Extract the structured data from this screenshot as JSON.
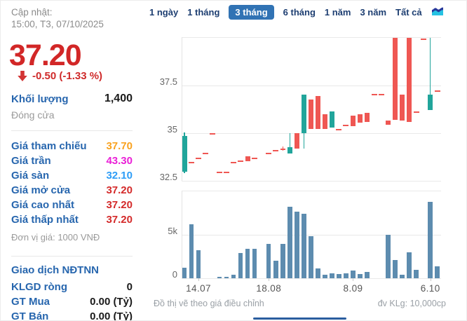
{
  "sidebar": {
    "updated_label": "Cập nhật:",
    "updated_time": "15:00, T3, 07/10/2025",
    "price": "37.20",
    "change": "-0.50 (-1.33 %)",
    "volume_label": "Khối lượng",
    "volume_value": "1,400",
    "close_label": "Đóng cửa",
    "price_rows": [
      {
        "label": "Giá tham chiếu",
        "value": "37.70",
        "color": "#f9a21f"
      },
      {
        "label": "Giá trần",
        "value": "43.30",
        "color": "#ea1fd7"
      },
      {
        "label": "Giá sàn",
        "value": "32.10",
        "color": "#2e9df7"
      },
      {
        "label": "Giá mở cửa",
        "value": "37.20",
        "color": "#d42a2a"
      },
      {
        "label": "Giá cao nhất",
        "value": "37.20",
        "color": "#d42a2a"
      },
      {
        "label": "Giá thấp nhất",
        "value": "37.20",
        "color": "#d42a2a"
      }
    ],
    "unit_note": "Đơn vị giá: 1000 VNĐ",
    "foreign_header": "Giao dịch NĐTNN",
    "foreign_rows": [
      {
        "label": "KLGD ròng",
        "value": "0"
      },
      {
        "label": "GT Mua",
        "value": "0.00 (Tỷ)"
      },
      {
        "label": "GT Bán",
        "value": "0.00 (Tỷ)"
      }
    ]
  },
  "tabs": {
    "items": [
      "1 ngày",
      "1 tháng",
      "3 tháng",
      "6 tháng",
      "1 năm",
      "3 năm",
      "Tất cả"
    ],
    "active": "3 tháng"
  },
  "footer": {
    "left_note": "Đồ thị vẽ theo giá điều chỉnh",
    "right_note": "đv KLg: 10,000cp"
  },
  "chart_data": {
    "type": "candlestick+volume",
    "title": "",
    "price_axis": {
      "range": [
        32.5,
        40
      ],
      "ticks": [
        {
          "v": 37.5,
          "label": "37.5"
        },
        {
          "v": 35,
          "label": "35"
        },
        {
          "v": 32.5,
          "label": "32.5"
        }
      ],
      "grid": true
    },
    "volume_axis": {
      "range_k": [
        0,
        9.8
      ],
      "unit": "k",
      "ticks": [
        {
          "v": 5,
          "label": "5k"
        },
        {
          "v": 0,
          "label": "0"
        }
      ]
    },
    "x_ticks": [
      {
        "i": 2,
        "label": "14.07"
      },
      {
        "i": 12,
        "label": "18.08"
      },
      {
        "i": 24,
        "label": "8.09"
      },
      {
        "i": 35,
        "label": "6.10"
      }
    ],
    "colors": {
      "up": "#21a59b",
      "down": "#ef5753",
      "volume": "#5d8caf"
    },
    "candles": [
      {
        "o": 33.0,
        "h": 35.05,
        "l": 32.9,
        "c": 34.87,
        "v": 1.2,
        "d": "u"
      },
      {
        "o": 33.45,
        "h": 33.45,
        "l": 33.45,
        "c": 33.45,
        "v": 6.2,
        "d": "d"
      },
      {
        "o": 33.7,
        "h": 33.7,
        "l": 33.7,
        "c": 33.7,
        "v": 3.2,
        "d": "d"
      },
      {
        "o": 33.95,
        "h": 33.95,
        "l": 33.95,
        "c": 33.95,
        "v": 0,
        "d": "d"
      },
      {
        "o": 34.95,
        "h": 34.95,
        "l": 34.95,
        "c": 34.95,
        "v": 0,
        "d": "d"
      },
      {
        "o": 32.95,
        "h": 32.95,
        "l": 32.95,
        "c": 32.95,
        "v": 0.15,
        "d": "d"
      },
      {
        "o": 32.95,
        "h": 32.95,
        "l": 32.95,
        "c": 32.95,
        "v": 0.15,
        "d": "d"
      },
      {
        "o": 33.45,
        "h": 33.45,
        "l": 33.45,
        "c": 33.45,
        "v": 0.4,
        "d": "d"
      },
      {
        "o": 33.55,
        "h": 33.55,
        "l": 33.55,
        "c": 33.55,
        "v": 2.9,
        "d": "d"
      },
      {
        "o": 33.8,
        "h": 33.8,
        "l": 33.55,
        "c": 33.55,
        "v": 3.4,
        "d": "d"
      },
      {
        "o": 33.7,
        "h": 33.7,
        "l": 33.7,
        "c": 33.7,
        "v": 3.4,
        "d": "d"
      },
      null,
      {
        "o": 33.95,
        "h": 33.95,
        "l": 33.95,
        "c": 33.95,
        "v": 3.9,
        "d": "d"
      },
      {
        "o": 34.1,
        "h": 34.1,
        "l": 34.1,
        "c": 34.1,
        "v": 2.0,
        "d": "d"
      },
      {
        "o": 34.2,
        "h": 34.3,
        "l": 34.1,
        "c": 34.2,
        "v": 3.9,
        "d": "d"
      },
      {
        "o": 33.95,
        "h": 35.0,
        "l": 33.95,
        "c": 34.25,
        "v": 8.2,
        "d": "u"
      },
      {
        "o": 35.0,
        "h": 35.0,
        "l": 34.2,
        "c": 34.2,
        "v": 7.6,
        "d": "d"
      },
      {
        "o": 35.0,
        "h": 37.0,
        "l": 34.2,
        "c": 37.0,
        "v": 7.4,
        "d": "u"
      },
      {
        "o": 36.75,
        "h": 36.75,
        "l": 35.2,
        "c": 35.2,
        "v": 4.8,
        "d": "d"
      },
      {
        "o": 36.95,
        "h": 36.95,
        "l": 35.2,
        "c": 35.2,
        "v": 1.1,
        "d": "d"
      },
      {
        "o": 36.0,
        "h": 36.0,
        "l": 35.2,
        "c": 35.2,
        "v": 0.4,
        "d": "d"
      },
      {
        "o": 35.3,
        "h": 36.15,
        "l": 35.3,
        "c": 36.15,
        "v": 0.6,
        "d": "u"
      },
      {
        "o": 35.2,
        "h": 35.2,
        "l": 35.2,
        "c": 35.2,
        "v": 0.5,
        "d": "d"
      },
      {
        "o": 35.4,
        "h": 35.4,
        "l": 35.4,
        "c": 35.4,
        "v": 0.6,
        "d": "d"
      },
      {
        "o": 35.9,
        "h": 35.9,
        "l": 35.35,
        "c": 35.35,
        "v": 0.9,
        "d": "d"
      },
      {
        "o": 36.0,
        "h": 36.0,
        "l": 35.55,
        "c": 35.55,
        "v": 0.5,
        "d": "d"
      },
      {
        "o": 36.05,
        "h": 36.05,
        "l": 35.6,
        "c": 35.6,
        "v": 0.7,
        "d": "d"
      },
      {
        "o": 37.0,
        "h": 37.0,
        "l": 37.0,
        "c": 37.0,
        "v": 0,
        "d": "d"
      },
      {
        "o": 37.0,
        "h": 37.0,
        "l": 37.0,
        "c": 37.0,
        "v": 0,
        "d": "d"
      },
      {
        "o": 35.65,
        "h": 35.65,
        "l": 35.45,
        "c": 35.45,
        "v": 5.0,
        "d": "d"
      },
      {
        "o": 39.97,
        "h": 39.97,
        "l": 35.7,
        "c": 35.7,
        "v": 2.1,
        "d": "d"
      },
      {
        "o": 37.0,
        "h": 37.0,
        "l": 35.65,
        "c": 35.65,
        "v": 0.4,
        "d": "d"
      },
      {
        "o": 39.97,
        "h": 39.97,
        "l": 35.6,
        "c": 35.6,
        "v": 3.0,
        "d": "d"
      },
      {
        "o": 36.1,
        "h": 36.1,
        "l": 36.1,
        "c": 36.1,
        "v": 1.0,
        "d": "d"
      },
      {
        "o": 39.9,
        "h": 39.9,
        "l": 39.9,
        "c": 39.9,
        "v": 0,
        "d": "d"
      },
      {
        "o": 36.2,
        "h": 39.97,
        "l": 36.2,
        "c": 37.0,
        "v": 8.7,
        "d": "u"
      },
      {
        "o": 37.2,
        "h": 37.2,
        "l": 37.2,
        "c": 37.2,
        "v": 1.4,
        "d": "d"
      }
    ]
  }
}
